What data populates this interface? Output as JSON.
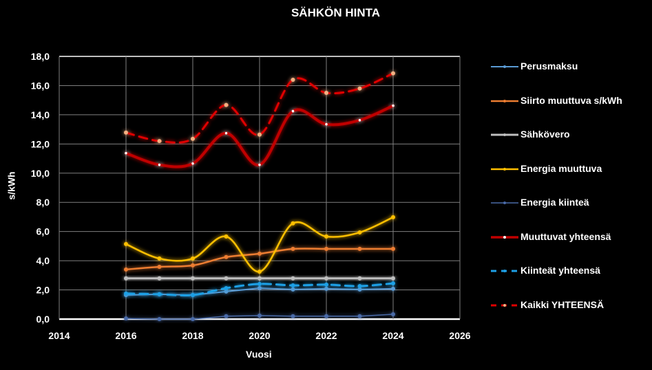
{
  "chart_data": {
    "type": "line",
    "title": "SÄHKÖN HINTA",
    "xlabel": "Vuosi",
    "ylabel": "s/kWh",
    "xlim": [
      2014,
      2026
    ],
    "ylim": [
      0,
      18
    ],
    "xticks": [
      "2014",
      "2016",
      "2018",
      "2020",
      "2022",
      "2024",
      "2026"
    ],
    "yticks": [
      "0,0",
      "2,0",
      "4,0",
      "6,0",
      "8,0",
      "10,0",
      "12,0",
      "14,0",
      "16,0",
      "18,0"
    ],
    "grid": true,
    "legend_position": "right",
    "x": [
      2016,
      2017,
      2018,
      2019,
      2020,
      2021,
      2022,
      2023,
      2024
    ],
    "series": [
      {
        "name": "Perusmaksu",
        "color": "#5b9bd5",
        "dash": false,
        "width": 2,
        "values": [
          1.65,
          1.7,
          1.65,
          1.89,
          2.12,
          2.03,
          2.08,
          2.03,
          2.08
        ]
      },
      {
        "name": "Siirto muuttuva s/kWh",
        "color": "#ed7d31",
        "dash": false,
        "width": 2.5,
        "values": [
          3.4,
          3.58,
          3.68,
          4.25,
          4.48,
          4.81,
          4.81,
          4.81,
          4.81
        ]
      },
      {
        "name": "Sähkövero",
        "color": "#bfbfbf",
        "dash": false,
        "width": 3,
        "values": [
          2.79,
          2.79,
          2.79,
          2.79,
          2.79,
          2.79,
          2.79,
          2.79,
          2.79
        ]
      },
      {
        "name": "Energia muuttuva",
        "color": "#ffc000",
        "dash": false,
        "width": 2.5,
        "values": [
          5.14,
          4.15,
          4.15,
          5.66,
          3.25,
          6.56,
          5.66,
          5.94,
          6.98
        ]
      },
      {
        "name": "Energia kiinteä",
        "color": "#4a6aa8",
        "dash": false,
        "width": 1.5,
        "values": [
          0.05,
          0.0,
          0.0,
          0.2,
          0.24,
          0.2,
          0.2,
          0.2,
          0.33
        ]
      },
      {
        "name": "Muuttuvat yhteensä",
        "color": "#c00000",
        "dash": false,
        "width": 4,
        "values": [
          11.37,
          10.57,
          10.66,
          12.74,
          10.57,
          14.25,
          13.35,
          13.63,
          14.62
        ]
      },
      {
        "name": "Kiinteät yhteensä",
        "color": "#1ea0e6",
        "dash": true,
        "width": 3,
        "values": [
          1.75,
          1.7,
          1.65,
          2.12,
          2.41,
          2.31,
          2.36,
          2.26,
          2.45
        ]
      },
      {
        "name": "Kaikki YHTEENSÄ",
        "color": "#e00000",
        "dash": true,
        "width": 3,
        "values": [
          12.78,
          12.2,
          12.35,
          14.67,
          12.64,
          16.4,
          15.5,
          15.8,
          16.84
        ]
      }
    ]
  }
}
